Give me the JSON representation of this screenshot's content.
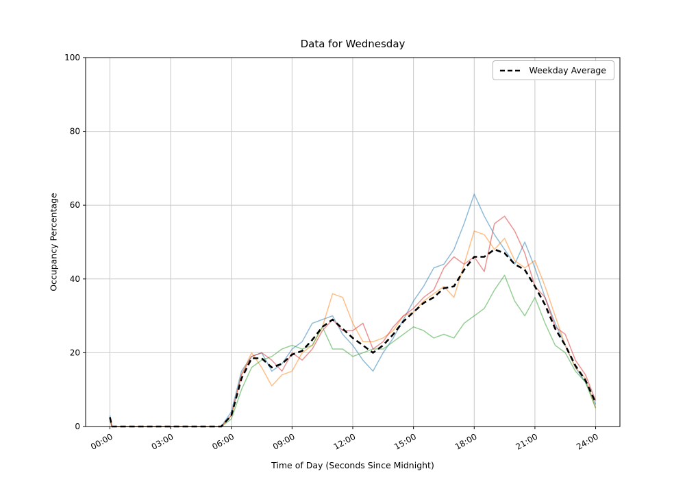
{
  "figure": {
    "title": "Data for Wednesday",
    "xlabel": "Time of Day (Seconds Since Midnight)",
    "ylabel": "Occupancy Percentage"
  },
  "legend": {
    "items": [
      {
        "label": "Weekday Average",
        "style": "dashed",
        "color": "#000000"
      }
    ]
  },
  "chart_data": {
    "type": "line",
    "title": "Data for Wednesday",
    "xlabel": "Time of Day (Seconds Since Midnight)",
    "ylabel": "Occupancy Percentage",
    "ylim": [
      0,
      100
    ],
    "xlim_hours": [
      -1.2,
      25.2
    ],
    "grid": true,
    "legend_position": "upper right",
    "y_ticks": [
      0,
      20,
      40,
      60,
      80,
      100
    ],
    "x_ticks": {
      "hours": [
        0,
        3,
        6,
        9,
        12,
        15,
        18,
        21,
        24
      ],
      "labels": [
        "00:00",
        "03:00",
        "06:00",
        "09:00",
        "12:00",
        "15:00",
        "18:00",
        "21:00",
        "24:00"
      ]
    },
    "x_hours": [
      0,
      0.1,
      0.5,
      1,
      1.5,
      2,
      2.5,
      3,
      3.5,
      4,
      4.5,
      5,
      5.5,
      6,
      6.5,
      7,
      7.5,
      8,
      8.5,
      9,
      9.5,
      10,
      10.5,
      11,
      11.5,
      12,
      12.5,
      13,
      13.5,
      14,
      14.5,
      15,
      15.5,
      16,
      16.5,
      17,
      17.5,
      18,
      18.5,
      19,
      19.5,
      20,
      20.5,
      21,
      21.5,
      22,
      22.5,
      23,
      23.5,
      24
    ],
    "series": [
      {
        "name": "wednesday-series-1",
        "color": "#1f77b4",
        "opacity": 0.5,
        "width": 1.5,
        "dash": null,
        "values": [
          3,
          0,
          0,
          0,
          0,
          0,
          0,
          0,
          0,
          0,
          0,
          0,
          0,
          4,
          15,
          19,
          20,
          15,
          17,
          21,
          23,
          28,
          29,
          30,
          25,
          22,
          18,
          15,
          20,
          24,
          29,
          34,
          38,
          43,
          44,
          48,
          55,
          63,
          57,
          52,
          48,
          44,
          50,
          43,
          35,
          28,
          22,
          16,
          12,
          6
        ]
      },
      {
        "name": "wednesday-series-2",
        "color": "#ff7f0e",
        "opacity": 0.5,
        "width": 1.5,
        "dash": null,
        "values": [
          2,
          0,
          0,
          0,
          0,
          0,
          0,
          0,
          0,
          0,
          0,
          0,
          0,
          3,
          14,
          20,
          16,
          11,
          14,
          15,
          20,
          22,
          27,
          36,
          35,
          28,
          23,
          23,
          24,
          26,
          30,
          31,
          34,
          36,
          38,
          35,
          44,
          53,
          52,
          48,
          51,
          45,
          43,
          45,
          38,
          30,
          22,
          16,
          13,
          5
        ]
      },
      {
        "name": "wednesday-series-3",
        "color": "#2ca02c",
        "opacity": 0.5,
        "width": 1.5,
        "dash": null,
        "values": [
          2,
          0,
          0,
          0,
          0,
          0,
          0,
          0,
          0,
          0,
          0,
          0,
          0,
          2,
          10,
          16,
          18,
          19,
          21,
          22,
          21,
          22,
          27,
          21,
          21,
          19,
          20,
          21,
          21,
          23,
          25,
          27,
          26,
          24,
          25,
          24,
          28,
          30,
          32,
          37,
          41,
          34,
          30,
          35,
          28,
          22,
          20,
          15,
          12,
          5
        ]
      },
      {
        "name": "wednesday-series-4",
        "color": "#d62728",
        "opacity": 0.5,
        "width": 1.5,
        "dash": null,
        "values": [
          2,
          0,
          0,
          0,
          0,
          0,
          0,
          0,
          0,
          0,
          0,
          0,
          0,
          3,
          14,
          19,
          20,
          18,
          15,
          20,
          18,
          21,
          26,
          29,
          26,
          26,
          28,
          21,
          23,
          27,
          30,
          32,
          35,
          37,
          43,
          46,
          44,
          46,
          42,
          55,
          57,
          53,
          47,
          38,
          35,
          27,
          25,
          18,
          14,
          7
        ]
      },
      {
        "name": "Weekday Average",
        "color": "#000000",
        "opacity": 1,
        "width": 2.6,
        "dash": "8 5",
        "values": [
          2.5,
          0,
          0,
          0,
          0,
          0,
          0,
          0,
          0,
          0,
          0,
          0,
          0,
          3,
          13,
          18.5,
          18.5,
          16,
          17,
          19.5,
          20.5,
          23.5,
          27,
          29,
          26.5,
          24,
          22,
          20,
          22,
          25,
          28.5,
          31,
          33.5,
          35,
          37.5,
          38,
          42.5,
          46,
          46,
          48,
          47,
          44,
          42.5,
          38,
          33,
          26.5,
          22,
          16.5,
          12.5,
          6.5
        ]
      }
    ],
    "style": {
      "grid_color": "#c8c8c8",
      "spine_color": "#000000",
      "background": "#ffffff"
    }
  }
}
